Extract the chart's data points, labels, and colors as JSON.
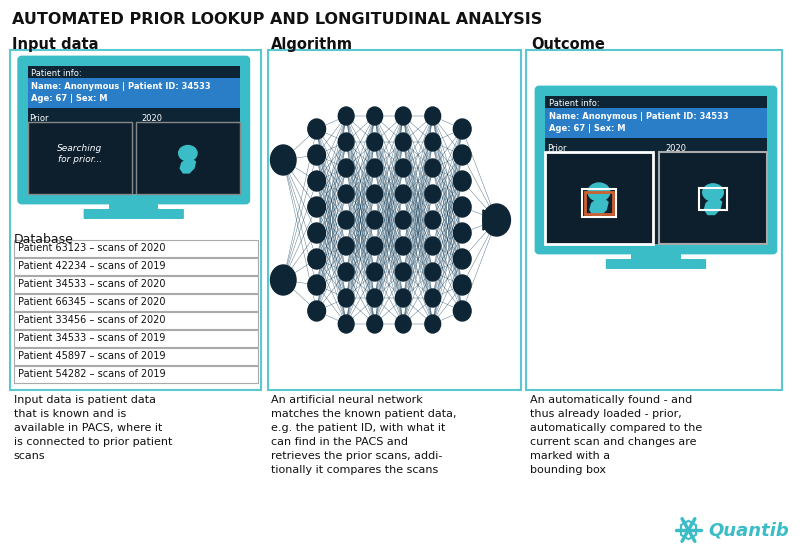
{
  "title": "AUTOMATED PRIOR LOOKUP AND LONGITUDINAL ANALYSIS",
  "col_headers": [
    "Input data",
    "Algorithm",
    "Outcome"
  ],
  "bg_color": "#ffffff",
  "border_color": "#5bc8d0",
  "dark_bg": "#0d2535",
  "teal": "#3bbdc8",
  "blue_highlight": "#2a7ec8",
  "node_color": "#0d2535",
  "line_color": "#1a4560",
  "input_desc": "Input data is patient data\nthat is known and is\navailable in PACS, where it\nis connected to prior patient\nscans",
  "algo_desc": "An artificial neural network\nmatches the known patient data,\ne.g. the patient ID, with what it\ncan find in the PACS and\nretrieves the prior scans, addi-\ntionally it compares the scans",
  "outcome_desc": "An automatically found - and\nthus already loaded - prior,\nautomatically compared to the\ncurrent scan and changes are\nmarked with a\nbounding box",
  "db_entries": [
    "Patient 63123 – scans of 2020",
    "Patient 42234 – scans of 2019",
    "Patient 34533 – scans of 2020",
    "Patient 66345 – scans of 2020",
    "Patient 33456 – scans of 2020",
    "Patient 34533 – scans of 2019",
    "Patient 45897 – scans of 2019",
    "Patient 54282 – scans of 2019"
  ],
  "patient_info_line1": "Name: Anonymous | Patient ID: 34533",
  "patient_info_line2": "Age: 67 | Sex: M",
  "quantib_color": "#3bbdc8"
}
